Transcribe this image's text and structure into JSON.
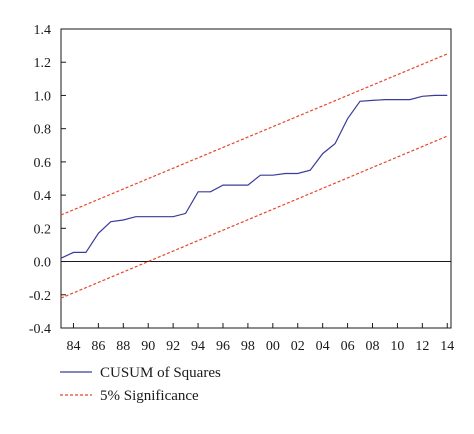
{
  "chart_data": {
    "type": "line",
    "title": "",
    "xlabel": "",
    "ylabel": "",
    "xlim": [
      1983,
      2014.3
    ],
    "ylim": [
      -0.4,
      1.4
    ],
    "y_ticks": [
      -0.4,
      -0.2,
      0.0,
      0.2,
      0.4,
      0.6,
      0.8,
      1.0,
      1.2,
      1.4
    ],
    "y_tick_labels": [
      "-0.4",
      "-0.2",
      "0.0",
      "0.2",
      "0.4",
      "0.6",
      "0.8",
      "1.0",
      "1.2",
      "1.4"
    ],
    "x_ticks": [
      1984,
      1986,
      1988,
      1990,
      1992,
      1994,
      1996,
      1998,
      2000,
      2002,
      2004,
      2006,
      2008,
      2010,
      2012,
      2014
    ],
    "x_tick_labels": [
      "84",
      "86",
      "88",
      "90",
      "92",
      "94",
      "96",
      "98",
      "00",
      "02",
      "04",
      "06",
      "08",
      "10",
      "12",
      "14"
    ],
    "grid": false,
    "zero_line": 0.0,
    "legend_placement": "bottom",
    "series": [
      {
        "name": "CUSUM of Squares",
        "color": "#3b3b9a",
        "style": "solid",
        "x": [
          1983,
          1984,
          1985,
          1986,
          1987,
          1988,
          1989,
          1990,
          1991,
          1992,
          1993,
          1994,
          1995,
          1996,
          1997,
          1998,
          1999,
          2000,
          2001,
          2002,
          2003,
          2004,
          2005,
          2006,
          2007,
          2008,
          2009,
          2010,
          2011,
          2012,
          2013,
          2014
        ],
        "values": [
          0.02,
          0.055,
          0.055,
          0.17,
          0.24,
          0.25,
          0.27,
          0.27,
          0.27,
          0.27,
          0.29,
          0.42,
          0.42,
          0.46,
          0.46,
          0.46,
          0.52,
          0.52,
          0.53,
          0.53,
          0.55,
          0.65,
          0.71,
          0.86,
          0.965,
          0.97,
          0.975,
          0.975,
          0.975,
          0.995,
          1.0,
          1.0
        ]
      },
      {
        "name": "5% Significance",
        "color": "#e8452a",
        "style": "dashed",
        "x": [
          1983,
          2014
        ],
        "values": [
          0.28,
          1.25
        ]
      },
      {
        "name": "5% Significance (lower)",
        "color": "#e8452a",
        "style": "dashed",
        "x": [
          1983,
          2014
        ],
        "values": [
          -0.22,
          0.755
        ]
      }
    ],
    "legend": [
      {
        "label": "CUSUM of Squares",
        "color": "#3b3b9a",
        "style": "solid"
      },
      {
        "label": "5% Significance",
        "color": "#e8452a",
        "style": "dashed"
      }
    ]
  }
}
